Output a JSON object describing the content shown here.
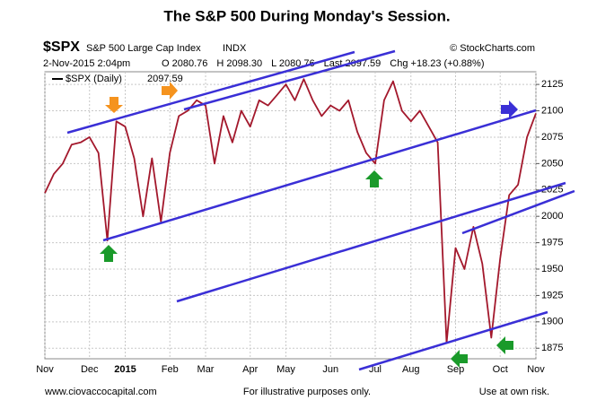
{
  "chart_data": {
    "type": "line",
    "title": "The S&P 500 During Monday's Session.",
    "symbol": "$SPX",
    "index_name": "S&P 500 Large Cap Index",
    "exchange": "INDX",
    "source": "© StockCharts.com",
    "date": "2-Nov-2015 2:04pm",
    "quote": [
      "O 2080.76",
      "H 2098.30",
      "L 2080.76",
      "Last 2097.59",
      "Chg +18.23 (+0.88%)"
    ],
    "categories": [
      "Nov",
      null,
      null,
      null,
      null,
      "Dec",
      null,
      null,
      null,
      "2015",
      null,
      null,
      null,
      null,
      "Feb",
      null,
      null,
      null,
      "Mar",
      null,
      null,
      null,
      null,
      "Apr",
      null,
      null,
      null,
      "May",
      null,
      null,
      null,
      null,
      "Jun",
      null,
      null,
      null,
      null,
      "Jul",
      null,
      null,
      null,
      "Aug",
      null,
      null,
      null,
      null,
      "Sep",
      null,
      null,
      null,
      null,
      "Oct",
      null,
      null,
      null,
      "Nov"
    ],
    "series": [
      {
        "name": "$SPX (Daily)",
        "color": "#a3182c",
        "values": [
          2022,
          2040,
          2050,
          2068,
          2070,
          2075,
          2060,
          1977,
          2090,
          2085,
          2055,
          2000,
          2055,
          1995,
          2060,
          2095,
          2100,
          2110,
          2105,
          2050,
          2095,
          2070,
          2100,
          2085,
          2110,
          2105,
          2115,
          2125,
          2110,
          2130,
          2110,
          2095,
          2105,
          2100,
          2110,
          2080,
          2060,
          2050,
          2110,
          2128,
          2100,
          2090,
          2100,
          2085,
          2070,
          1880,
          1970,
          1950,
          1990,
          1955,
          1885,
          1960,
          2020,
          2030,
          2075,
          2097.59
        ]
      }
    ],
    "ylim": [
      1865,
      2137
    ],
    "yticks": [
      1875,
      1900,
      1925,
      1950,
      1975,
      2000,
      2025,
      2050,
      2075,
      2100,
      2125
    ],
    "grid": true,
    "footer": [
      "www.ciovaccocapital.com",
      "For illustrative purposes only.",
      "Use at own risk."
    ]
  }
}
